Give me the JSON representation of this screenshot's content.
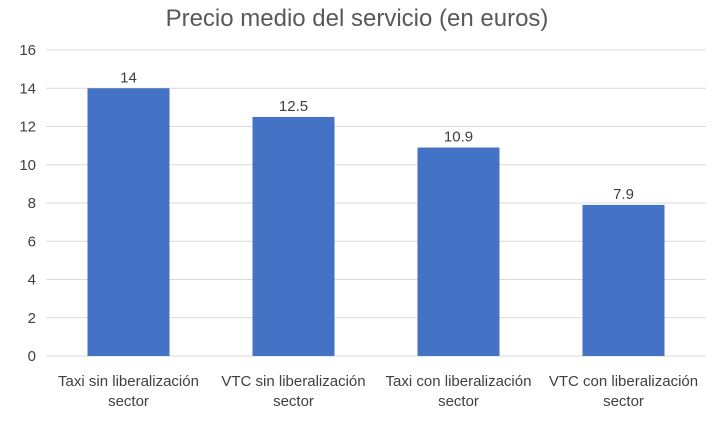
{
  "chart_data": {
    "type": "bar",
    "title": "Precio medio del servicio (en euros)",
    "categories": [
      [
        "Taxi sin liberalización",
        "sector"
      ],
      [
        "VTC sin liberalización",
        "sector"
      ],
      [
        "Taxi con liberalización",
        "sector"
      ],
      [
        "VTC con liberalización",
        "sector"
      ]
    ],
    "values": [
      14,
      12.5,
      10.9,
      7.9
    ],
    "data_labels": [
      "14",
      "12.5",
      "10.9",
      "7.9"
    ],
    "yticks": [
      "0",
      "2",
      "4",
      "6",
      "8",
      "10",
      "12",
      "14",
      "16"
    ],
    "ylim": [
      0,
      16
    ],
    "xlabel": "",
    "ylabel": "",
    "grid": true,
    "legend": "none",
    "bar_color": "#4472c4"
  }
}
